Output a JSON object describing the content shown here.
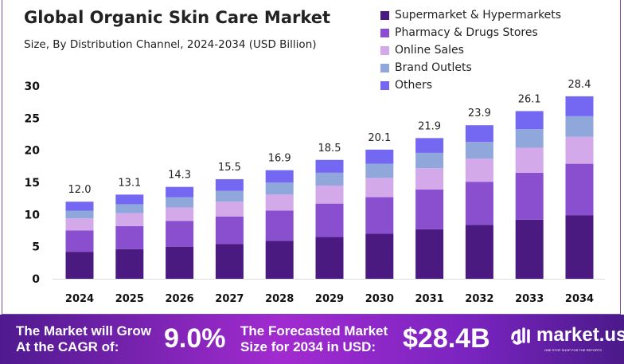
{
  "chart_data": {
    "type": "bar",
    "stacked": true,
    "title": "Global Organic Skin Care Market",
    "subtitle": "Size, By Distribution Channel, 2024-2034 (USD Billion)",
    "categories": [
      "2024",
      "2025",
      "2026",
      "2027",
      "2028",
      "2029",
      "2030",
      "2031",
      "2032",
      "2033",
      "2034"
    ],
    "totals": [
      "12.0",
      "13.1",
      "14.3",
      "15.5",
      "16.9",
      "18.5",
      "20.1",
      "21.9",
      "23.9",
      "26.1",
      "28.4"
    ],
    "series": [
      {
        "name": "Supermarket & Hypermarkets",
        "color": "#4b1a80",
        "values": [
          4.2,
          4.6,
          5.0,
          5.4,
          5.9,
          6.5,
          7.0,
          7.7,
          8.4,
          9.2,
          9.9
        ]
      },
      {
        "name": "Pharmacy & Drugs Stores",
        "color": "#8a4fce",
        "values": [
          3.3,
          3.6,
          4.0,
          4.3,
          4.7,
          5.2,
          5.7,
          6.2,
          6.7,
          7.3,
          8.0
        ]
      },
      {
        "name": "Online Sales",
        "color": "#d3a9ea",
        "values": [
          1.9,
          2.0,
          2.1,
          2.3,
          2.5,
          2.8,
          3.0,
          3.3,
          3.6,
          3.9,
          4.2
        ]
      },
      {
        "name": "Brand Outlets",
        "color": "#8fa7db",
        "values": [
          1.2,
          1.4,
          1.6,
          1.7,
          1.9,
          2.0,
          2.2,
          2.4,
          2.6,
          2.9,
          3.2
        ]
      },
      {
        "name": "Others",
        "color": "#7468f3",
        "values": [
          1.4,
          1.5,
          1.6,
          1.8,
          1.9,
          2.0,
          2.2,
          2.3,
          2.6,
          2.8,
          3.1
        ]
      }
    ],
    "yticks": [
      "0",
      "5",
      "10",
      "15",
      "20",
      "25",
      "30"
    ],
    "ylim": [
      0,
      30
    ],
    "grid": false,
    "legend": "top-right"
  },
  "footer": {
    "cagr_label_1": "The Market will Grow",
    "cagr_label_2": "At the CAGR of:",
    "cagr": "9.0%",
    "forecast_label_1": "The Forecasted Market",
    "forecast_label_2": "Size for 2034 in USD:",
    "forecast": "$28.4B",
    "logo": "market.us",
    "logo_tagline": "ONE STOP SHOP FOR THE REPORTS"
  }
}
